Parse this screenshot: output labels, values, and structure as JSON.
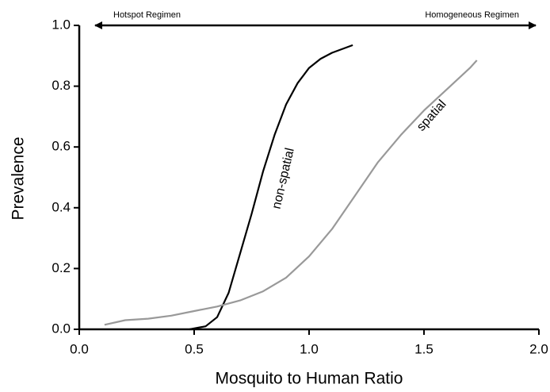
{
  "chart_data": {
    "type": "line",
    "x_label": "Mosquito to Human Ratio",
    "y_label": "Prevalence",
    "annotations": [
      "Hotspot Regimen",
      "Homogeneous Regimen"
    ],
    "xlim": [
      0,
      2
    ],
    "ylim": [
      0,
      1
    ],
    "xticks": [
      {
        "value": 0,
        "label": "0.0"
      },
      0.5,
      {
        "value": 1,
        "label": "1.0"
      },
      1.5,
      {
        "value": 2,
        "label": "2.0"
      }
    ],
    "yticks": [
      {
        "value": 0,
        "label": "0.0"
      },
      0.2,
      0.4,
      0.6,
      0.8,
      {
        "value": 1,
        "label": "1.0"
      }
    ],
    "series": [
      {
        "name": "non-spatial",
        "color": "#000000",
        "x": [
          0.48,
          0.55,
          0.6,
          0.65,
          0.7,
          0.75,
          0.8,
          0.85,
          0.9,
          0.95,
          1.0,
          1.05,
          1.1,
          1.19
        ],
        "values": [
          0,
          0.01,
          0.04,
          0.12,
          0.25,
          0.38,
          0.52,
          0.64,
          0.74,
          0.81,
          0.86,
          0.89,
          0.91,
          0.935
        ]
      },
      {
        "name": "spatial",
        "color": "#999999",
        "x": [
          0.11,
          0.2,
          0.3,
          0.4,
          0.5,
          0.6,
          0.7,
          0.8,
          0.9,
          1.0,
          1.1,
          1.2,
          1.3,
          1.4,
          1.5,
          1.6,
          1.7,
          1.73
        ],
        "values": [
          0.015,
          0.03,
          0.035,
          0.045,
          0.06,
          0.075,
          0.095,
          0.125,
          0.17,
          0.24,
          0.33,
          0.44,
          0.55,
          0.64,
          0.72,
          0.79,
          0.86,
          0.885
        ]
      }
    ]
  }
}
